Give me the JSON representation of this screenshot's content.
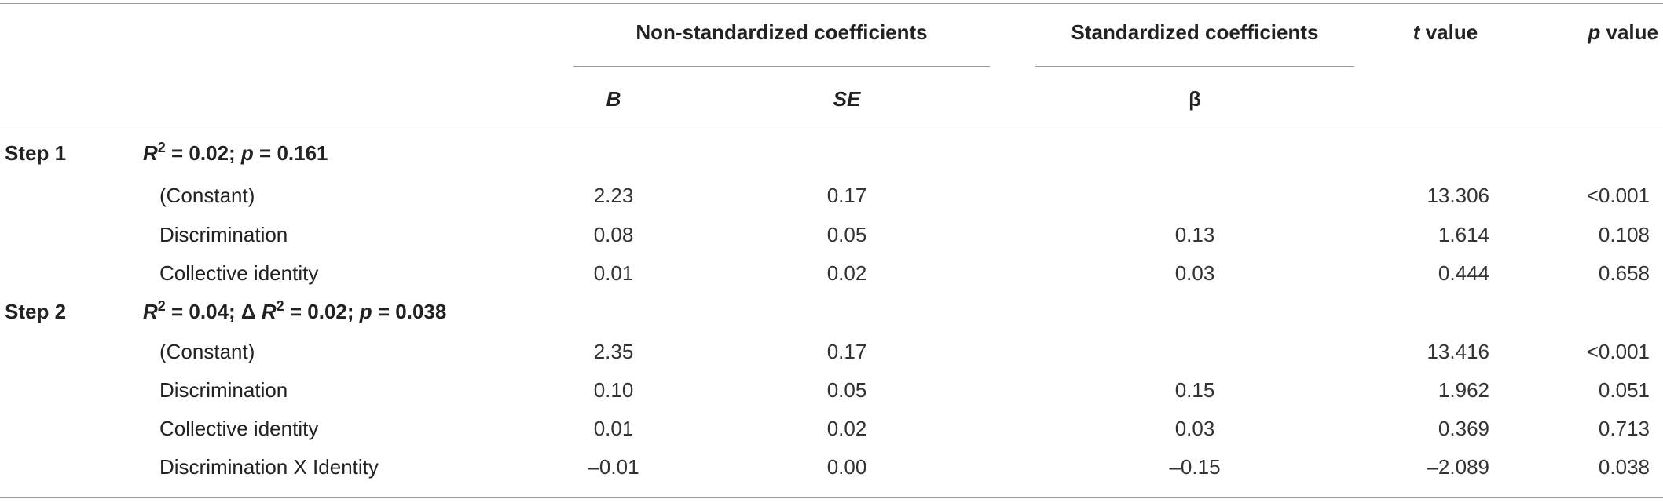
{
  "header": {
    "non_std": "Non-standardized coefficients",
    "std": "Standardized coefficients",
    "t_italic": "t",
    "t_rest": " value",
    "p_italic": "p",
    "p_rest": " value",
    "B": "B",
    "SE": "SE",
    "beta": "β"
  },
  "steps": [
    {
      "label": "Step 1",
      "stat_parts": {
        "r": "R",
        "sup": "2",
        "rest1": " = 0.02; ",
        "p": "p",
        "rest2": " = 0.161"
      },
      "rows": [
        {
          "name": "(Constant)",
          "B": "2.23",
          "SE": "0.17",
          "beta": "",
          "t": "13.306",
          "p": "<0.001"
        },
        {
          "name": "Discrimination",
          "B": "0.08",
          "SE": "0.05",
          "beta": "0.13",
          "t": "1.614",
          "p": "0.108"
        },
        {
          "name": "Collective identity",
          "B": "0.01",
          "SE": "0.02",
          "beta": "0.03",
          "t": "0.444",
          "p": "0.658"
        }
      ]
    },
    {
      "label": "Step 2",
      "stat_parts": {
        "r": "R",
        "sup": "2",
        "rest1": " = 0.04; Δ ",
        "r2": "R",
        "sup2": "2",
        "rest2": " = 0.02; ",
        "p": "p",
        "rest3": " = 0.038"
      },
      "rows": [
        {
          "name": "(Constant)",
          "B": "2.35",
          "SE": "0.17",
          "beta": "",
          "t": "13.416",
          "p": "<0.001"
        },
        {
          "name": "Discrimination",
          "B": "0.10",
          "SE": "0.05",
          "beta": "0.15",
          "t": "1.962",
          "p": "0.051"
        },
        {
          "name": "Collective identity",
          "B": "0.01",
          "SE": "0.02",
          "beta": "0.03",
          "t": "0.369",
          "p": "0.713"
        },
        {
          "name": "Discrimination X Identity",
          "B": "–0.01",
          "SE": "0.00",
          "beta": "–0.15",
          "t": "–2.089",
          "p": "0.038"
        }
      ]
    }
  ]
}
